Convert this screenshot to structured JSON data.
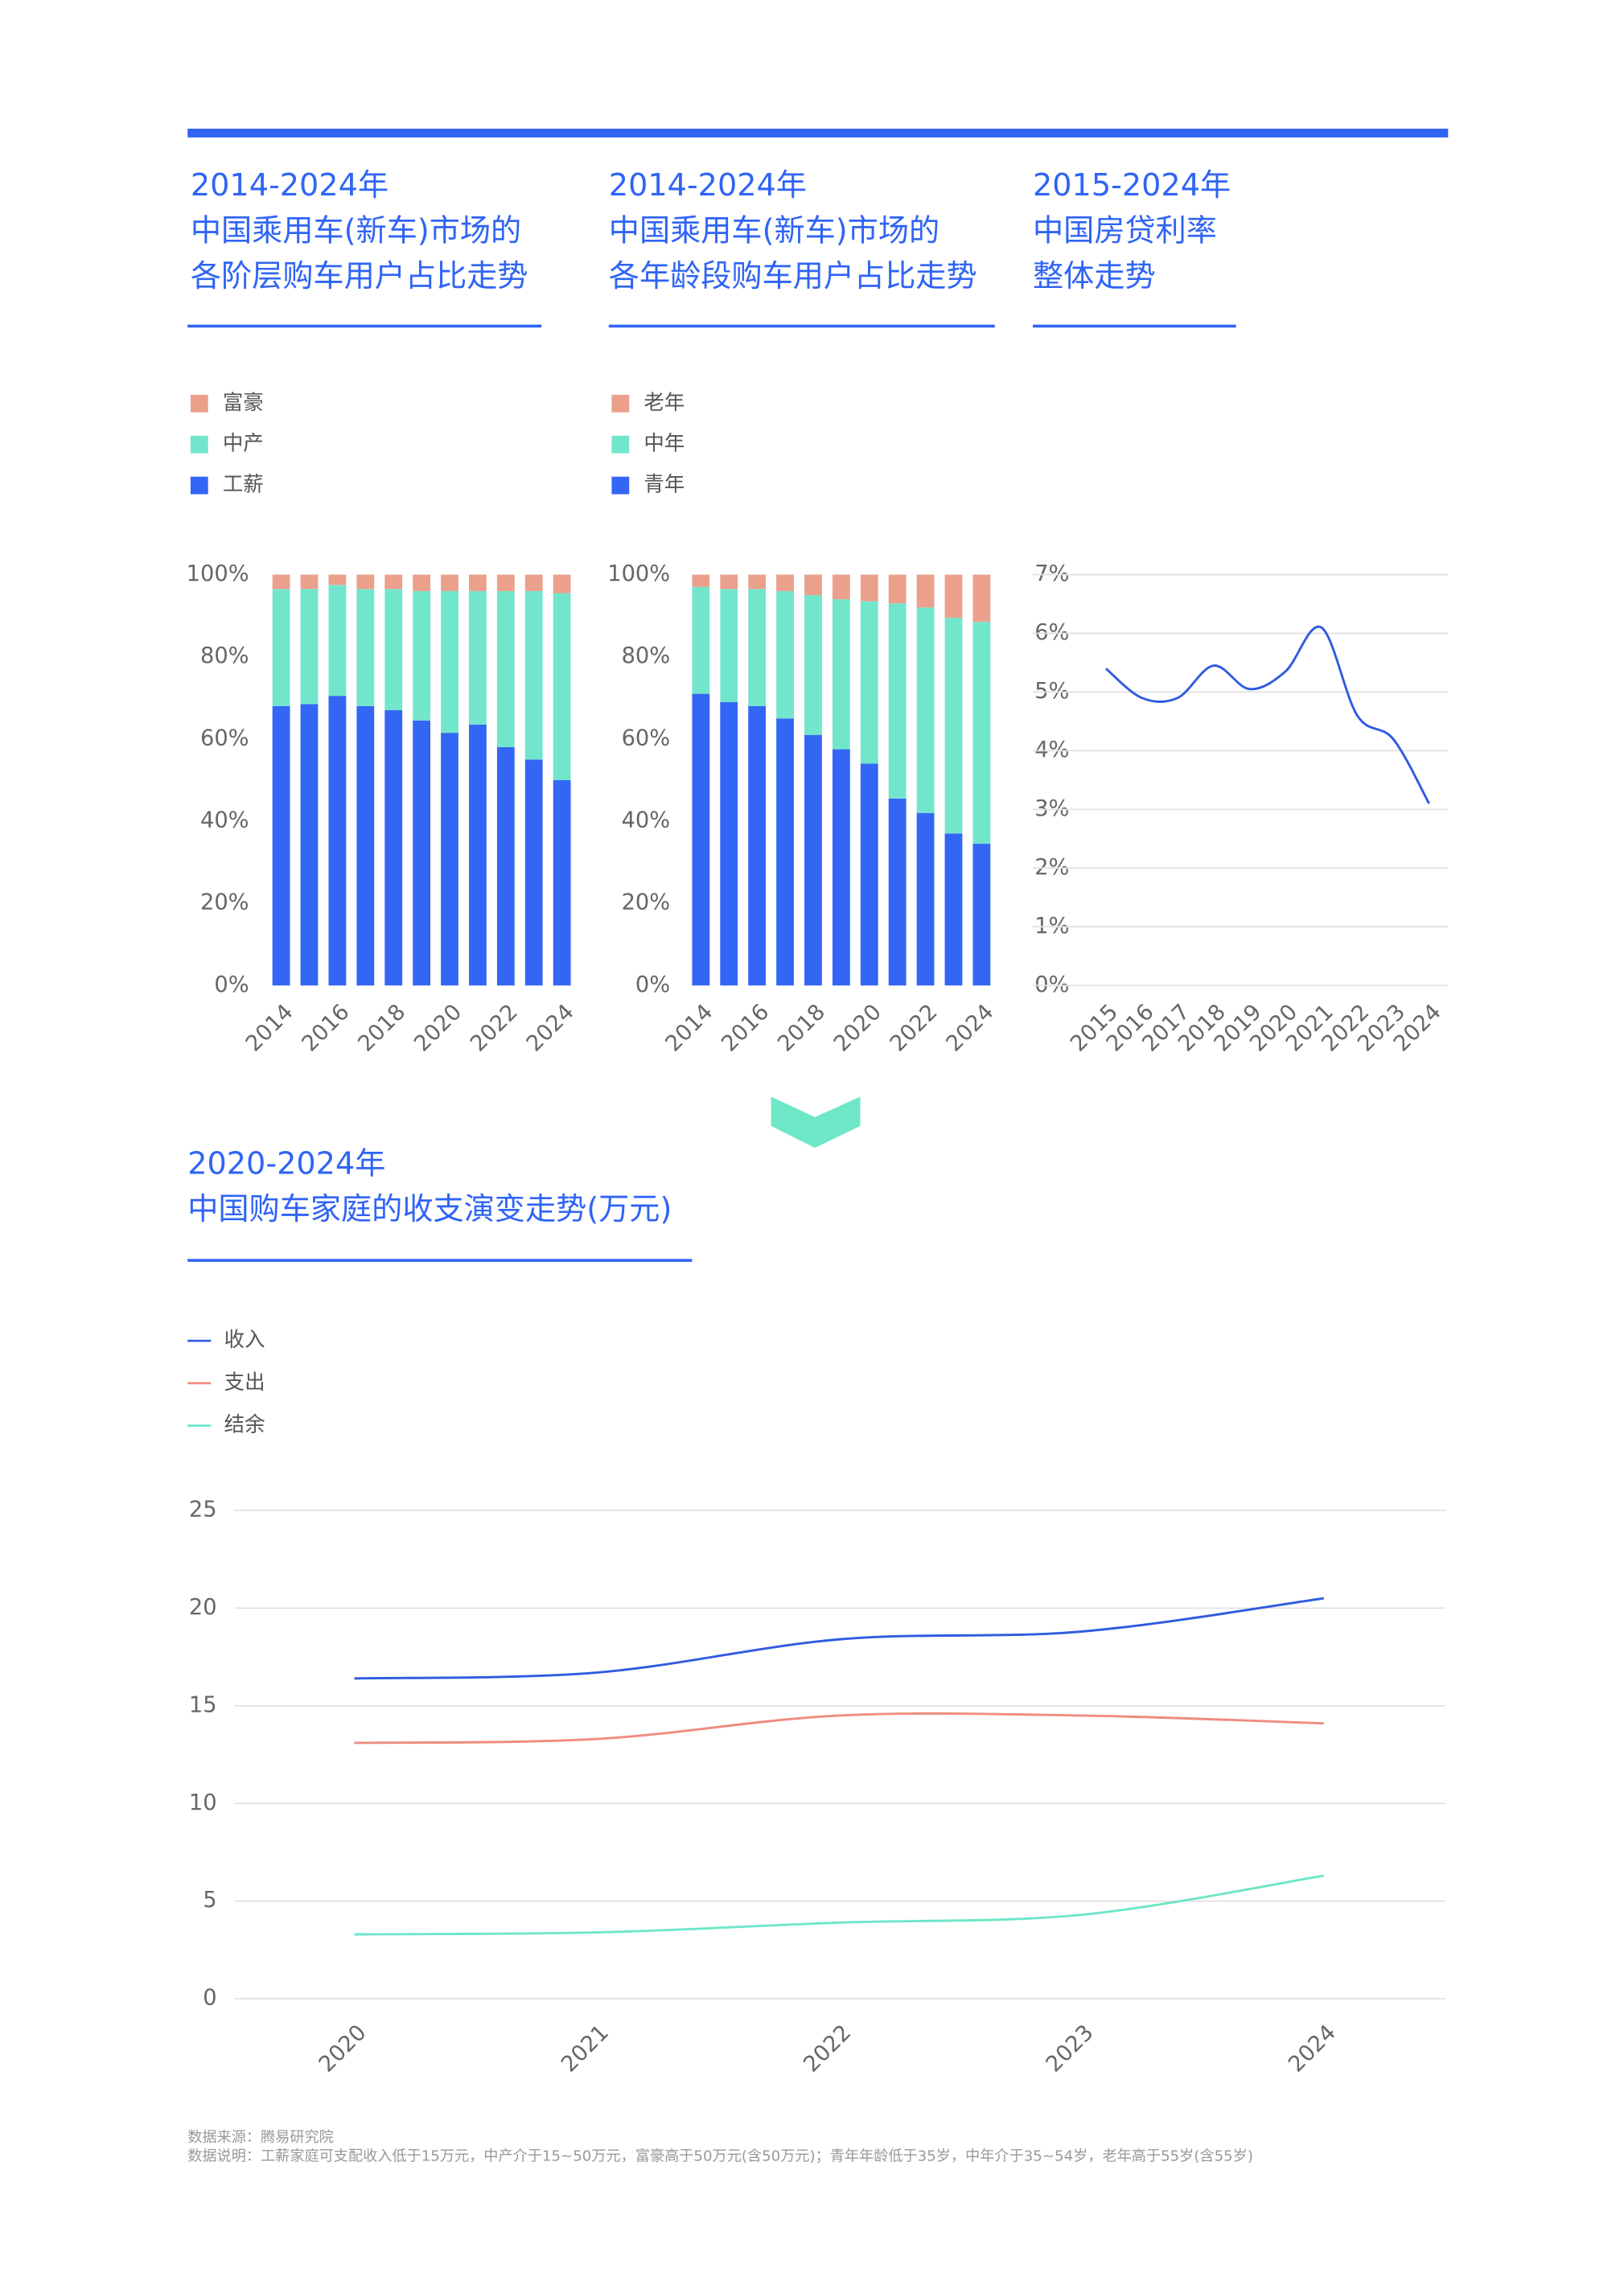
{
  "chart_data": [
    {
      "type": "bar",
      "stacked": true,
      "title_lines": [
        "2014-2024年",
        "中国乘用车(新车)市场的",
        "各阶层购车用户占比走势"
      ],
      "categories": [
        "2014",
        null,
        "2016",
        null,
        "2018",
        null,
        "2020",
        null,
        "2022",
        null,
        "2024"
      ],
      "series": [
        {
          "name": "工薪",
          "color": "#3366f5",
          "values": [
            68,
            68.5,
            70.5,
            68,
            67,
            64.5,
            61.5,
            63.5,
            58,
            55,
            50
          ]
        },
        {
          "name": "中产",
          "color": "#72e6cc",
          "values": [
            28.5,
            28,
            27,
            28.5,
            29.5,
            31.5,
            34.5,
            32.5,
            38,
            41,
            45.5
          ]
        },
        {
          "name": "富豪",
          "color": "#eba08c",
          "values": [
            3.5,
            3.5,
            2.5,
            3.5,
            3.5,
            4,
            4,
            4,
            4,
            4,
            4.5
          ]
        }
      ],
      "ylim": [
        0,
        100
      ],
      "yticks": [
        {
          "value": 0,
          "label": "0%"
        },
        {
          "value": 20,
          "label": "20%"
        },
        {
          "value": 40,
          "label": "40%"
        },
        {
          "value": 60,
          "label": "60%"
        },
        {
          "value": 80,
          "label": "80%"
        },
        {
          "value": 100,
          "label": "100%"
        }
      ],
      "grid": false
    },
    {
      "type": "bar",
      "stacked": true,
      "title_lines": [
        "2014-2024年",
        "中国乘用车(新车)市场的",
        "各年龄段购车用户占比走势"
      ],
      "categories": [
        "2014",
        null,
        "2016",
        null,
        "2018",
        null,
        "2020",
        null,
        "2022",
        null,
        "2024"
      ],
      "series": [
        {
          "name": "青年",
          "color": "#3366f5",
          "values": [
            71,
            69,
            68,
            65,
            61,
            57.5,
            54,
            45.5,
            42,
            37,
            34.5
          ]
        },
        {
          "name": "中年",
          "color": "#72e6cc",
          "values": [
            26,
            27.5,
            28.5,
            31,
            34,
            36.5,
            39.5,
            47.5,
            50,
            52.5,
            54
          ]
        },
        {
          "name": "老年",
          "color": "#eba08c",
          "values": [
            3,
            3.5,
            3.5,
            4,
            5,
            6,
            6.5,
            7,
            8,
            10.5,
            11.5
          ]
        }
      ],
      "ylim": [
        0,
        100
      ],
      "yticks": [
        {
          "value": 0,
          "label": "0%"
        },
        {
          "value": 20,
          "label": "20%"
        },
        {
          "value": 40,
          "label": "40%"
        },
        {
          "value": 60,
          "label": "60%"
        },
        {
          "value": 80,
          "label": "80%"
        },
        {
          "value": 100,
          "label": "100%"
        }
      ],
      "grid": false
    },
    {
      "type": "line",
      "title_lines": [
        "2015-2024年",
        "中国房贷利率",
        "整体走势"
      ],
      "categories": [
        "2015",
        "2016",
        "2017",
        "2018",
        "2019",
        "2020",
        "2021",
        "2022",
        "2023",
        "2024"
      ],
      "series": [
        {
          "color": "#2f5be0",
          "values": [
            5.4,
            4.9,
            4.9,
            5.45,
            5.05,
            5.35,
            6.1,
            4.6,
            4.2,
            3.1
          ]
        }
      ],
      "ylim": [
        0,
        7
      ],
      "yticks": [
        {
          "value": 0,
          "label": "0%"
        },
        {
          "value": 1,
          "label": "1%"
        },
        {
          "value": 2,
          "label": "2%"
        },
        {
          "value": 3,
          "label": "3%"
        },
        {
          "value": 4,
          "label": "4%"
        },
        {
          "value": 5,
          "label": "5%"
        },
        {
          "value": 6,
          "label": "6%"
        },
        {
          "value": 7,
          "label": "7%"
        }
      ],
      "grid": true
    },
    {
      "type": "line",
      "title_lines": [
        "2020-2024年",
        "中国购车家庭的收支演变走势(万元)"
      ],
      "categories": [
        "2020",
        "2021",
        "2022",
        "2023",
        "2024"
      ],
      "series": [
        {
          "name": "收入",
          "color": "#2f5be0",
          "values": [
            16.4,
            16.7,
            18.4,
            18.8,
            20.5
          ]
        },
        {
          "name": "支出",
          "color": "#ee8c80",
          "values": [
            13.1,
            13.3,
            14.5,
            14.5,
            14.1
          ]
        },
        {
          "name": "结余",
          "color": "#6ee6c8",
          "values": [
            3.3,
            3.4,
            3.9,
            4.3,
            6.3
          ]
        }
      ],
      "ylim": [
        0,
        25
      ],
      "yticks": [
        0,
        5,
        10,
        15,
        20,
        25
      ],
      "grid": true
    }
  ],
  "notes": [
    "数据来源：腾易研究院",
    "数据说明：工薪家庭可支配收入低于15万元，中产介于15~50万元，富豪高于50万元(含50万元)；青年年龄低于35岁，中年介于35~54岁，老年高于55岁(含55岁)"
  ]
}
